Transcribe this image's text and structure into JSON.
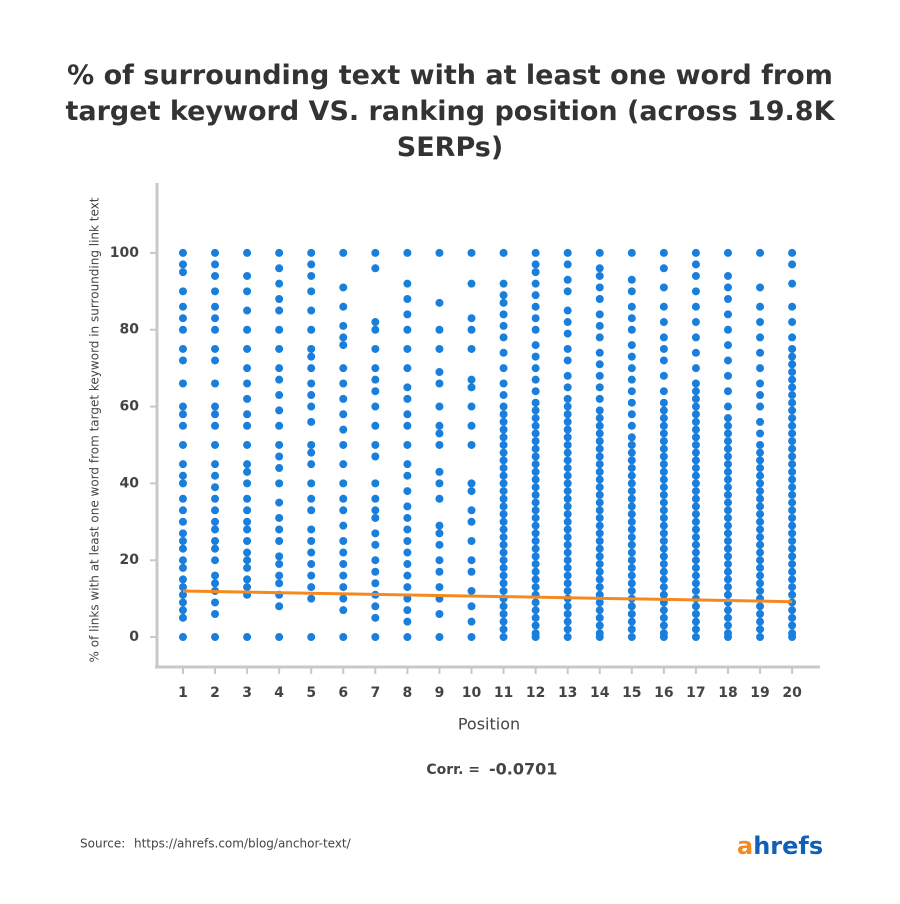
{
  "chart_data": {
    "type": "scatter",
    "title": "% of surrounding text with at least one word from target keyword VS. ranking position (across 19.8K SERPs)",
    "xlabel": "Position",
    "ylabel": "% of links with at least one word from target keyword in surrounding link text",
    "corr_label": "Corr. =",
    "corr_value": "-0.0701",
    "color": "#1a7fdc",
    "xlim": [
      0.19,
      20.87
    ],
    "ylim": [
      -7.8,
      118.2
    ],
    "xticks": [
      1,
      2,
      3,
      4,
      5,
      6,
      7,
      8,
      9,
      10,
      11,
      12,
      13,
      14,
      15,
      16,
      17,
      18,
      19,
      20
    ],
    "yticks": [
      0,
      20,
      40,
      60,
      80,
      100
    ],
    "grid": false,
    "x": [
      1,
      2,
      3,
      4,
      5,
      6,
      7,
      8,
      9,
      10,
      11,
      12,
      13,
      14,
      15,
      16,
      17,
      18,
      19,
      20
    ],
    "values": [
      [
        0,
        5,
        7,
        9,
        11,
        13,
        15,
        18,
        20,
        23,
        25,
        27,
        30,
        33,
        36,
        40,
        42,
        45,
        50,
        55,
        58,
        60,
        66,
        72,
        75,
        80,
        83,
        86,
        90,
        95,
        97,
        100
      ],
      [
        0,
        6,
        9,
        12,
        14,
        16,
        20,
        23,
        25,
        28,
        30,
        33,
        36,
        39,
        42,
        45,
        50,
        55,
        58,
        60,
        66,
        72,
        75,
        80,
        83,
        86,
        90,
        94,
        97,
        100
      ],
      [
        0,
        11,
        13,
        15,
        18,
        20,
        22,
        25,
        28,
        30,
        33,
        36,
        40,
        43,
        45,
        50,
        55,
        58,
        62,
        66,
        70,
        75,
        80,
        85,
        90,
        94,
        100
      ],
      [
        0,
        8,
        11,
        14,
        16,
        19,
        21,
        25,
        28,
        31,
        35,
        40,
        44,
        47,
        50,
        55,
        59,
        63,
        67,
        70,
        75,
        80,
        85,
        88,
        92,
        96,
        100
      ],
      [
        0,
        10,
        13,
        16,
        19,
        22,
        25,
        28,
        33,
        36,
        40,
        45,
        48,
        50,
        56,
        60,
        63,
        66,
        70,
        73,
        75,
        80,
        85,
        90,
        94,
        97,
        100
      ],
      [
        0,
        7,
        10,
        13,
        16,
        19,
        22,
        25,
        29,
        33,
        36,
        40,
        45,
        50,
        54,
        58,
        62,
        66,
        70,
        76,
        78,
        81,
        86,
        91,
        100
      ],
      [
        0,
        5,
        8,
        11,
        14,
        17,
        20,
        24,
        27,
        31,
        33,
        36,
        40,
        47,
        50,
        55,
        60,
        64,
        67,
        70,
        75,
        80,
        82,
        96,
        100
      ],
      [
        0,
        4,
        7,
        10,
        13,
        16,
        19,
        22,
        25,
        28,
        31,
        34,
        38,
        42,
        45,
        50,
        55,
        58,
        62,
        65,
        70,
        75,
        80,
        84,
        88,
        92,
        100
      ],
      [
        0,
        6,
        10,
        13,
        17,
        20,
        24,
        27,
        29,
        36,
        40,
        43,
        50,
        53,
        55,
        60,
        66,
        69,
        75,
        80,
        87,
        100
      ],
      [
        0,
        4,
        8,
        12,
        17,
        20,
        25,
        30,
        33,
        38,
        40,
        50,
        55,
        60,
        65,
        67,
        75,
        80,
        83,
        92,
        100
      ],
      [
        0,
        2,
        4,
        6,
        8,
        10,
        12,
        14,
        16,
        18,
        20,
        22,
        24,
        26,
        28,
        30,
        32,
        34,
        36,
        38,
        40,
        42,
        44,
        46,
        48,
        50,
        52,
        54,
        56,
        58,
        60,
        63,
        66,
        70,
        74,
        78,
        81,
        84,
        87,
        89,
        92,
        100
      ],
      [
        0,
        1,
        3,
        5,
        7,
        9,
        11,
        13,
        15,
        17,
        19,
        21,
        23,
        25,
        27,
        29,
        31,
        33,
        35,
        37,
        39,
        41,
        43,
        45,
        47,
        49,
        51,
        53,
        55,
        57,
        59,
        61,
        64,
        67,
        70,
        73,
        76,
        80,
        83,
        86,
        89,
        92,
        95,
        97,
        100
      ],
      [
        0,
        2,
        4,
        6,
        8,
        10,
        12,
        14,
        16,
        18,
        20,
        22,
        24,
        26,
        28,
        30,
        32,
        34,
        36,
        38,
        40,
        42,
        44,
        46,
        48,
        50,
        52,
        54,
        56,
        58,
        60,
        62,
        65,
        68,
        72,
        75,
        79,
        82,
        85,
        90,
        93,
        97,
        100
      ],
      [
        0,
        1,
        3,
        5,
        7,
        9,
        11,
        13,
        15,
        17,
        19,
        21,
        23,
        25,
        27,
        29,
        31,
        33,
        35,
        37,
        39,
        41,
        43,
        45,
        47,
        49,
        51,
        53,
        55,
        57,
        59,
        62,
        65,
        68,
        71,
        74,
        78,
        81,
        84,
        88,
        91,
        94,
        96,
        100
      ],
      [
        0,
        2,
        4,
        6,
        8,
        10,
        12,
        14,
        16,
        18,
        20,
        22,
        24,
        26,
        28,
        30,
        32,
        34,
        36,
        38,
        40,
        42,
        44,
        46,
        48,
        50,
        52,
        55,
        58,
        61,
        64,
        67,
        70,
        73,
        76,
        80,
        83,
        86,
        90,
        93,
        100
      ],
      [
        0,
        1,
        3,
        5,
        7,
        9,
        11,
        13,
        15,
        17,
        19,
        21,
        23,
        25,
        27,
        29,
        31,
        33,
        35,
        37,
        39,
        41,
        43,
        45,
        47,
        49,
        51,
        53,
        55,
        57,
        59,
        61,
        64,
        68,
        72,
        75,
        78,
        82,
        86,
        91,
        96,
        100
      ],
      [
        0,
        2,
        4,
        6,
        8,
        10,
        12,
        14,
        16,
        18,
        20,
        22,
        24,
        26,
        28,
        30,
        32,
        34,
        36,
        38,
        40,
        42,
        44,
        46,
        48,
        50,
        52,
        54,
        56,
        58,
        60,
        62,
        64,
        66,
        70,
        74,
        78,
        82,
        86,
        90,
        94,
        97,
        100
      ],
      [
        0,
        1,
        3,
        5,
        7,
        9,
        11,
        13,
        15,
        17,
        19,
        21,
        23,
        25,
        27,
        29,
        31,
        33,
        35,
        37,
        39,
        41,
        43,
        45,
        47,
        49,
        51,
        53,
        55,
        57,
        60,
        64,
        68,
        72,
        76,
        80,
        84,
        88,
        91,
        94,
        100
      ],
      [
        0,
        2,
        4,
        6,
        8,
        10,
        12,
        14,
        16,
        18,
        20,
        22,
        24,
        26,
        28,
        30,
        32,
        34,
        36,
        38,
        40,
        42,
        44,
        46,
        48,
        50,
        53,
        56,
        60,
        63,
        66,
        70,
        74,
        78,
        82,
        86,
        91,
        100
      ],
      [
        0,
        1,
        3,
        5,
        7,
        9,
        11,
        13,
        15,
        17,
        19,
        21,
        23,
        25,
        27,
        29,
        31,
        33,
        35,
        37,
        39,
        41,
        43,
        45,
        47,
        49,
        51,
        53,
        55,
        57,
        59,
        61,
        63,
        65,
        67,
        69,
        71,
        73,
        75,
        78,
        82,
        86,
        92,
        97,
        100
      ]
    ],
    "trend": {
      "color": "#f5891f",
      "x": [
        1,
        20
      ],
      "values": [
        12,
        9.2
      ]
    }
  },
  "source": {
    "label": "Source:",
    "url": "https://ahrefs.com/blog/anchor-text/"
  },
  "brand": [
    "a",
    "hrefs"
  ]
}
